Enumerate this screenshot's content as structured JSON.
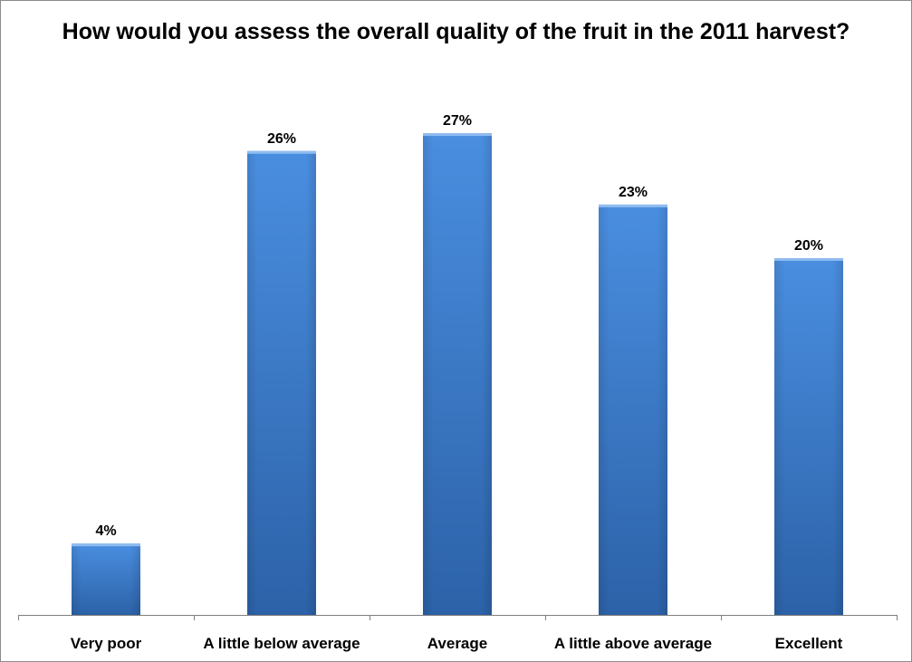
{
  "chart_data": {
    "type": "bar",
    "title": "How would you assess the overall quality of the fruit in the 2011 harvest?",
    "categories": [
      "Very poor",
      "A little below average",
      "Average",
      "A little above average",
      "Excellent"
    ],
    "values": [
      4,
      26,
      27,
      23,
      20
    ],
    "data_labels": [
      "4%",
      "26%",
      "27%",
      "23%",
      "20%"
    ],
    "unit": "%",
    "xlabel": "",
    "ylabel": "",
    "ylim": [
      0,
      36
    ],
    "grid": false,
    "legend": "none",
    "colors": {
      "bar_light": "#4a8ee0",
      "bar_dark": "#2c62a8",
      "bar_top": "#8fbcf0",
      "axis": "#7f7f7f"
    }
  }
}
